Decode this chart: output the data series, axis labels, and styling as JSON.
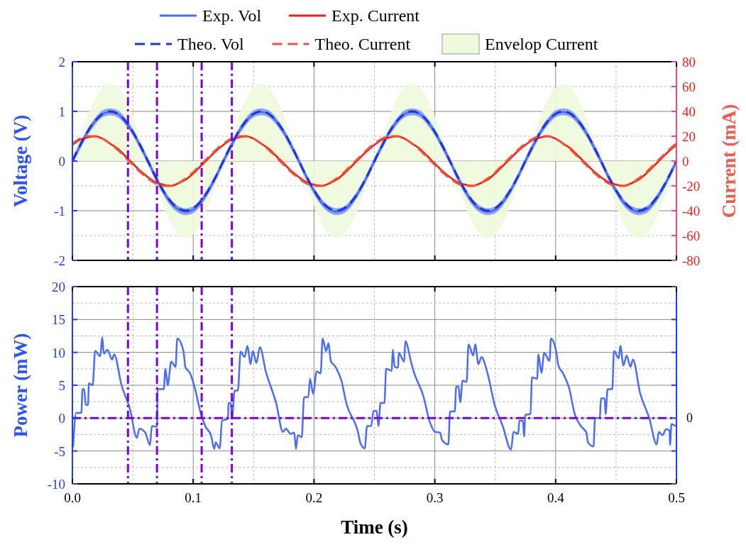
{
  "chart_data": [
    {
      "type": "line",
      "ylabel": "Voltage (V)",
      "y2label": "Current (mA)",
      "xlim": [
        0,
        0.5
      ],
      "xticks": [
        0,
        0.1,
        0.2,
        0.3,
        0.4,
        0.5
      ],
      "ylim": [
        -2,
        2
      ],
      "yticks": [
        -2,
        -1,
        0,
        1,
        2
      ],
      "y2lim": [
        -80,
        80
      ],
      "y2ticks": [
        -80,
        -60,
        -40,
        -20,
        0,
        20,
        40,
        60,
        80
      ],
      "grid": true,
      "legend": "top",
      "tick_labels": "y",
      "x": [
        0,
        0.00625,
        0.0125,
        0.01875,
        0.025,
        0.03125,
        0.0375,
        0.04375,
        0.05,
        0.05625,
        0.0625,
        0.06875,
        0.075,
        0.08125,
        0.0875,
        0.09375,
        0.1,
        0.10625,
        0.1125,
        0.11875,
        0.125,
        0.13125,
        0.1375,
        0.14375,
        0.15,
        0.15625,
        0.1625,
        0.16875,
        0.175,
        0.18125,
        0.1875,
        0.19375,
        0.2,
        0.20625,
        0.2125,
        0.21875,
        0.225,
        0.23125,
        0.2375,
        0.24375,
        0.25,
        0.25625,
        0.2625,
        0.26875,
        0.275,
        0.28125,
        0.2875,
        0.29375,
        0.3,
        0.30625,
        0.3125,
        0.31875,
        0.325,
        0.33125,
        0.3375,
        0.34375,
        0.35,
        0.35625,
        0.3625,
        0.36875,
        0.375,
        0.38125,
        0.3875,
        0.39375,
        0.4,
        0.40625,
        0.4125,
        0.41875,
        0.425,
        0.43125,
        0.4375,
        0.44375,
        0.45,
        0.45625,
        0.4625,
        0.46875,
        0.475,
        0.48125,
        0.4875,
        0.49375,
        0.5
      ],
      "series": [
        {
          "name": "Exp. Vol",
          "color": "#4a6cf7",
          "values": [
            0,
            0.3,
            0.58,
            0.8,
            0.95,
            0.99,
            0.95,
            0.8,
            0.58,
            0.3,
            0,
            -0.32,
            -0.6,
            -0.83,
            -0.97,
            -1.02,
            -0.98,
            -0.83,
            -0.6,
            -0.32,
            0,
            0.3,
            0.58,
            0.8,
            0.95,
            0.99,
            0.95,
            0.8,
            0.58,
            0.3,
            0,
            -0.32,
            -0.6,
            -0.83,
            -0.97,
            -1.02,
            -0.98,
            -0.83,
            -0.6,
            -0.32,
            0,
            0.3,
            0.58,
            0.8,
            0.95,
            0.99,
            0.95,
            0.8,
            0.58,
            0.3,
            0,
            -0.32,
            -0.6,
            -0.83,
            -0.97,
            -1.02,
            -0.98,
            -0.83,
            -0.6,
            -0.32,
            0,
            0.3,
            0.58,
            0.8,
            0.95,
            0.99,
            0.95,
            0.8,
            0.58,
            0.3,
            0,
            -0.32,
            -0.6,
            -0.83,
            -0.97,
            -1.02,
            -0.98,
            -0.83,
            -0.6,
            -0.32,
            0
          ],
          "lower": [
            -0.07,
            0.23,
            0.51,
            0.73,
            0.88,
            0.92,
            0.88,
            0.73,
            0.51,
            0.23,
            -0.07,
            -0.39,
            -0.67,
            -0.9,
            -1.04,
            -1.09,
            -1.05,
            -0.9,
            -0.67,
            -0.39,
            -0.07,
            0.23,
            0.51,
            0.73,
            0.88,
            0.92,
            0.88,
            0.73,
            0.51,
            0.23,
            -0.07,
            -0.39,
            -0.67,
            -0.9,
            -1.04,
            -1.09,
            -1.05,
            -0.9,
            -0.67,
            -0.39,
            -0.07,
            0.23,
            0.51,
            0.73,
            0.88,
            0.92,
            0.88,
            0.73,
            0.51,
            0.23,
            -0.07,
            -0.39,
            -0.67,
            -0.9,
            -1.04,
            -1.09,
            -1.05,
            -0.9,
            -0.67,
            -0.39,
            -0.07,
            0.23,
            0.51,
            0.73,
            0.88,
            0.92,
            0.88,
            0.73,
            0.51,
            0.23,
            -0.07,
            -0.39,
            -0.67,
            -0.9,
            -1.04,
            -1.09,
            -1.05,
            -0.9,
            -0.67,
            -0.39,
            -0.07
          ],
          "upper": [
            0.07,
            0.37,
            0.65,
            0.87,
            1.02,
            1.06,
            1.02,
            0.87,
            0.65,
            0.37,
            0.07,
            -0.25,
            -0.53,
            -0.76,
            -0.9,
            -0.95,
            -0.91,
            -0.76,
            -0.53,
            -0.25,
            0.07,
            0.37,
            0.65,
            0.87,
            1.02,
            1.06,
            1.02,
            0.87,
            0.65,
            0.37,
            0.07,
            -0.25,
            -0.53,
            -0.76,
            -0.9,
            -0.95,
            -0.91,
            -0.76,
            -0.53,
            -0.25,
            0.07,
            0.37,
            0.65,
            0.87,
            1.02,
            1.06,
            1.02,
            0.87,
            0.65,
            0.37,
            0.07,
            -0.25,
            -0.53,
            -0.76,
            -0.9,
            -0.95,
            -0.91,
            -0.76,
            -0.53,
            -0.25,
            0.07,
            0.37,
            0.65,
            0.87,
            1.02,
            1.06,
            1.02,
            0.87,
            0.65,
            0.37,
            0.07,
            -0.25,
            -0.53,
            -0.76,
            -0.9,
            -0.95,
            -0.91,
            -0.76,
            -0.53,
            -0.25,
            0.07
          ]
        },
        {
          "name": "Exp. Current",
          "color": "#ff1a10",
          "axis": "y2",
          "values": [
            13,
            17,
            19,
            20,
            18,
            14,
            10,
            4,
            -2,
            -8,
            -13,
            -17,
            -19,
            -20,
            -18,
            -15,
            -10,
            -4,
            2,
            8,
            13,
            17,
            19,
            20,
            18,
            14,
            10,
            4,
            -2,
            -8,
            -13,
            -17,
            -19,
            -20,
            -18,
            -15,
            -10,
            -4,
            2,
            8,
            13,
            17,
            19,
            20,
            18,
            14,
            10,
            4,
            -2,
            -8,
            -13,
            -17,
            -19,
            -20,
            -18,
            -15,
            -10,
            -4,
            2,
            8,
            13,
            17,
            19,
            20,
            18,
            14,
            10,
            4,
            -2,
            -8,
            -13,
            -17,
            -19,
            -20,
            -18,
            -15,
            -10,
            -4,
            2,
            8,
            13
          ]
        },
        {
          "name": "Theo. Vol",
          "color": "#2233dd",
          "line_style": "dashed",
          "values": [
            0,
            0.31,
            0.59,
            0.81,
            0.95,
            1,
            0.95,
            0.81,
            0.59,
            0.31,
            0,
            -0.31,
            -0.59,
            -0.81,
            -0.95,
            -1,
            -0.95,
            -0.81,
            -0.59,
            -0.31,
            0,
            0.31,
            0.59,
            0.81,
            0.95,
            1,
            0.95,
            0.81,
            0.59,
            0.31,
            0,
            -0.31,
            -0.59,
            -0.81,
            -0.95,
            -1,
            -0.95,
            -0.81,
            -0.59,
            -0.31,
            0,
            0.31,
            0.59,
            0.81,
            0.95,
            1,
            0.95,
            0.81,
            0.59,
            0.31,
            0,
            -0.31,
            -0.59,
            -0.81,
            -0.95,
            -1,
            -0.95,
            -0.81,
            -0.59,
            -0.31,
            0,
            0.31,
            0.59,
            0.81,
            0.95,
            1,
            0.95,
            0.81,
            0.59,
            0.31,
            0,
            -0.31,
            -0.59,
            -0.81,
            -0.95,
            -1,
            -0.95,
            -0.81,
            -0.59,
            -0.31,
            0
          ]
        },
        {
          "name": "Theo. Current",
          "color": "#f5503a",
          "axis": "y2",
          "line_style": "dashed",
          "values": [
            14,
            18,
            20,
            20,
            18,
            14,
            9,
            3,
            -3,
            -9,
            -14,
            -18,
            -20,
            -20,
            -18,
            -14,
            -9,
            -3,
            3,
            9,
            14,
            18,
            20,
            20,
            18,
            14,
            9,
            3,
            -3,
            -9,
            -14,
            -18,
            -20,
            -20,
            -18,
            -14,
            -9,
            -3,
            3,
            9,
            14,
            18,
            20,
            20,
            18,
            14,
            9,
            3,
            -3,
            -9,
            -14,
            -18,
            -20,
            -20,
            -18,
            -14,
            -9,
            -3,
            3,
            9,
            14,
            18,
            20,
            20,
            18,
            14,
            9,
            3,
            -3,
            -9,
            -14,
            -18,
            -20,
            -20,
            -18,
            -14,
            -9,
            -3,
            3,
            9,
            14
          ]
        },
        {
          "name": "Envelop Current",
          "type": "area",
          "color": "#eefadc",
          "axis": "y2",
          "values": [
            0,
            19,
            36,
            50,
            59,
            62,
            59,
            50,
            36,
            19,
            0,
            -19,
            -36,
            -50,
            -59,
            -62,
            -59,
            -50,
            -36,
            -19,
            0,
            19,
            36,
            50,
            59,
            62,
            59,
            50,
            36,
            19,
            0,
            -19,
            -36,
            -50,
            -59,
            -62,
            -59,
            -50,
            -36,
            -19,
            0,
            19,
            36,
            50,
            59,
            62,
            59,
            50,
            36,
            19,
            0,
            -19,
            -36,
            -50,
            -59,
            -62,
            -59,
            -50,
            -36,
            -19,
            0,
            19,
            36,
            50,
            59,
            62,
            59,
            50,
            36,
            19,
            0,
            -19,
            -36,
            -50,
            -59,
            -62,
            -59,
            -50,
            -36,
            -19,
            0
          ]
        }
      ],
      "ref_lines": [
        {
          "axis": "x",
          "value": 0.046,
          "color": "#7a00e6",
          "line_style": "dashdot"
        },
        {
          "axis": "x",
          "value": 0.07,
          "color": "#7a00e6",
          "line_style": "dashdot"
        },
        {
          "axis": "x",
          "value": 0.107,
          "color": "#7a00e6",
          "line_style": "dashdot"
        },
        {
          "axis": "x",
          "value": 0.132,
          "color": "#7a00e6",
          "line_style": "dashdot"
        }
      ]
    },
    {
      "type": "line",
      "xlabel": "Time (s)",
      "ylabel": "Power (mW)",
      "xlim": [
        0,
        0.5
      ],
      "xticks": [
        {
          "value": 0,
          "label": "0.0"
        },
        0.1,
        0.2,
        0.3,
        0.4,
        0.5
      ],
      "ylim": [
        -10,
        20
      ],
      "yticks": [
        -10,
        -5,
        0,
        5,
        10,
        15,
        20
      ],
      "grid": true,
      "series": [
        {
          "color": "#4a6cf7",
          "x": [
            0.0006,
            0.0031,
            0.0074,
            0.0084,
            0.0098,
            0.011,
            0.0129,
            0.0137,
            0.0168,
            0.0188,
            0.0231,
            0.0247,
            0.026,
            0.029,
            0.0329,
            0.0345,
            0.0407,
            0.0476,
            0.0534,
            0.0554,
            0.0603,
            0.0642,
            0.0658,
            0.0701,
            0.0705,
            0.0756,
            0.077,
            0.0789,
            0.0818,
            0.0854,
            0.0868,
            0.0919,
            0.0935,
            0.0974,
            0.1013,
            0.1063,
            0.1102,
            0.1147,
            0.1174,
            0.1186,
            0.1219,
            0.1239,
            0.1288,
            0.1292,
            0.1311,
            0.1321,
            0.1343,
            0.137,
            0.1392,
            0.1425,
            0.1449,
            0.1474,
            0.1494,
            0.1523,
            0.1552,
            0.1601,
            0.1689,
            0.1742,
            0.1767,
            0.1806,
            0.1836,
            0.1851,
            0.1865,
            0.1898,
            0.1918,
            0.1953,
            0.1967,
            0.1993,
            0.2022,
            0.2055,
            0.2071,
            0.21,
            0.212,
            0.2139,
            0.2178,
            0.2227,
            0.2267,
            0.2365,
            0.2384,
            0.242,
            0.2439,
            0.2473,
            0.2492,
            0.2518,
            0.2534,
            0.255,
            0.2583,
            0.2597,
            0.2643,
            0.2652,
            0.2668,
            0.2696,
            0.2701,
            0.2746,
            0.2756,
            0.2799,
            0.2818,
            0.2906,
            0.2955,
            0.3004,
            0.3044,
            0.3059,
            0.3112,
            0.3126,
            0.3165,
            0.3177,
            0.3196,
            0.321,
            0.323,
            0.3263,
            0.3279,
            0.3318,
            0.3334,
            0.3361,
            0.3386,
            0.3435,
            0.3494,
            0.3562,
            0.3631,
            0.3651,
            0.369,
            0.37,
            0.3729,
            0.3739,
            0.3749,
            0.3792,
            0.3804,
            0.3847,
            0.3857,
            0.3882,
            0.3906,
            0.3949,
            0.3961,
            0.4004,
            0.4023,
            0.4062,
            0.4111,
            0.416,
            0.4209,
            0.4254,
            0.4268,
            0.4313,
            0.4327,
            0.4366,
            0.4375,
            0.4405,
            0.4414,
            0.443,
            0.4469,
            0.4483,
            0.4522,
            0.4536,
            0.4561,
            0.4587,
            0.462,
            0.464,
            0.4698,
            0.4777,
            0.4836,
            0.4855,
            0.4884,
            0.4914,
            0.4943,
            0.4947,
            0.4959,
            0.4992
          ],
          "values": [
            -4.4,
            0.8,
            0.8,
            4.4,
            4.4,
            2,
            2,
            5.3,
            5,
            10.2,
            9.4,
            12.3,
            9.8,
            10.4,
            8.9,
            9.7,
            5,
            1.4,
            -3,
            -1.6,
            -2.2,
            -4.1,
            -1.2,
            -1.3,
            4.4,
            4.4,
            7.5,
            5,
            8.6,
            7.8,
            12.1,
            10.2,
            7.8,
            6.8,
            4.6,
            0.7,
            -1.3,
            -2.6,
            -4.7,
            -3.7,
            -4.6,
            -0.4,
            -0.1,
            2.3,
            2.3,
            -0.1,
            4.2,
            4.2,
            10.1,
            9.3,
            11,
            8.2,
            10.2,
            8.4,
            10.8,
            7.1,
            2.1,
            -2.1,
            -1.6,
            -2.4,
            -2.2,
            -4.7,
            -2.6,
            -2.9,
            3.2,
            3.2,
            6,
            3.7,
            7.1,
            6.8,
            12.1,
            10.2,
            11.4,
            8.7,
            7.8,
            5.7,
            2.3,
            -2.2,
            -3.8,
            -4.6,
            -1.2,
            -1.2,
            1.1,
            1.1,
            -1.2,
            2.3,
            2.3,
            7.5,
            7.2,
            10.4,
            7.8,
            7.7,
            9.9,
            8.6,
            11.7,
            8.9,
            7.5,
            3.3,
            -0.4,
            -2.1,
            -2.2,
            -3.3,
            -4,
            1,
            1,
            4.8,
            4.8,
            2.4,
            5.7,
            5.5,
            11.2,
            9.5,
            11.2,
            8.2,
            9.3,
            6.9,
            2.1,
            -1.2,
            -4.8,
            -2.1,
            -2.4,
            -0.4,
            -0.4,
            -2.8,
            0.5,
            0.6,
            6.2,
            6,
            9.7,
            6.9,
            9.9,
            8.7,
            12.1,
            10.2,
            8,
            6.8,
            4.6,
            0.5,
            -1.2,
            -2.2,
            -3.7,
            -4.3,
            0,
            0,
            3,
            3,
            0.6,
            4.4,
            4.4,
            10.2,
            9.1,
            11,
            8,
            9.5,
            7.8,
            8.9,
            3.9,
            -0.1,
            -4,
            -2.1,
            -2.6,
            -1.7,
            -1.9,
            -4.1,
            -0.9,
            -1.2
          ]
        }
      ],
      "ref_lines": [
        {
          "axis": "x",
          "value": 0.046,
          "color": "#7a00e6",
          "line_style": "dashdot"
        },
        {
          "axis": "x",
          "value": 0.07,
          "color": "#7a00e6",
          "line_style": "dashdot"
        },
        {
          "axis": "x",
          "value": 0.107,
          "color": "#7a00e6",
          "line_style": "dashdot"
        },
        {
          "axis": "x",
          "value": 0.132,
          "color": "#7a00e6",
          "line_style": "dashdot"
        },
        {
          "axis": "y",
          "value": 0,
          "label": "0",
          "color": "#7a00e6",
          "line_style": "dashdot"
        }
      ]
    }
  ]
}
